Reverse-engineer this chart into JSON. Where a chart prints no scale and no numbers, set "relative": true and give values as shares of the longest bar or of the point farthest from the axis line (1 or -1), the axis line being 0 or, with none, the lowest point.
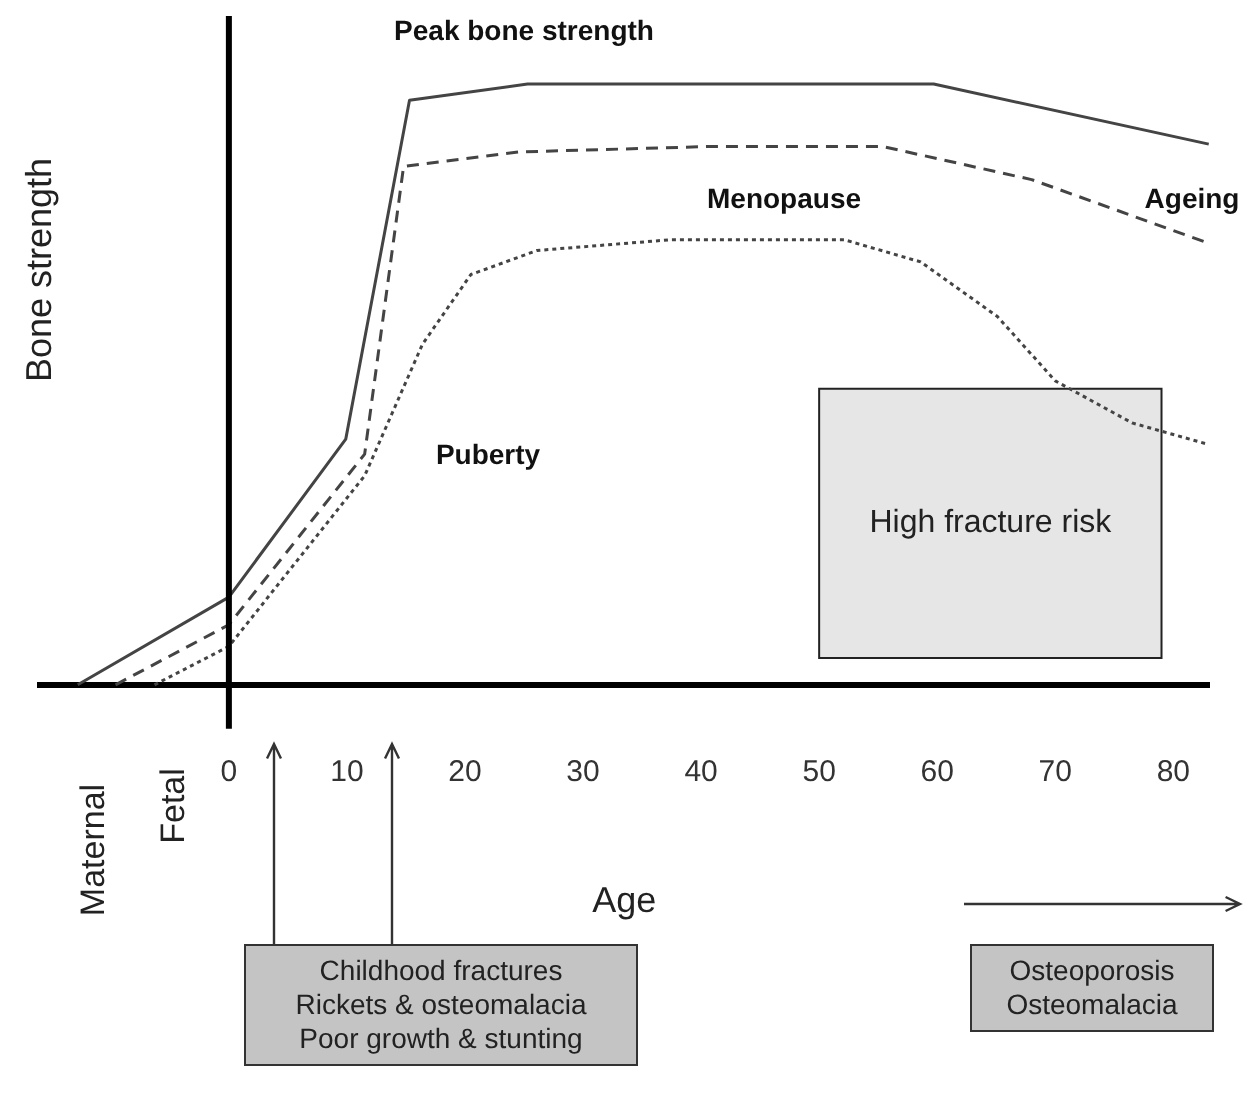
{
  "chart_data": {
    "type": "line",
    "relative": true,
    "xlabel": "Age",
    "ylabel": "Bone strength",
    "xlim": [
      -16,
      83
    ],
    "xticks": [
      0,
      10,
      20,
      30,
      40,
      50,
      60,
      70,
      80
    ],
    "grid": false,
    "legend": false,
    "marker": "none",
    "series": [
      {
        "color": "#444444",
        "line_style": "solid",
        "x": [
          -12.8,
          0,
          9.9,
          15.3,
          25.3,
          59.7,
          83
        ],
        "values": [
          0,
          0.146,
          0.409,
          0.973,
          1,
          1,
          0.9
        ]
      },
      {
        "color": "#444444",
        "line_style": "dashed",
        "x": [
          -9.6,
          0,
          11.5,
          14.8,
          24.5,
          40.6,
          55.4,
          68,
          83
        ],
        "values": [
          0,
          0.1,
          0.384,
          0.863,
          0.887,
          0.896,
          0.896,
          0.841,
          0.735
        ]
      },
      {
        "color": "#444444",
        "line_style": "dotted",
        "x": [
          -6.3,
          0,
          11.5,
          16.4,
          20.5,
          26.1,
          37.5,
          52.1,
          58.6,
          65.1,
          70,
          76.5,
          83
        ],
        "values": [
          0,
          0.064,
          0.348,
          0.567,
          0.683,
          0.723,
          0.741,
          0.741,
          0.704,
          0.613,
          0.506,
          0.436,
          0.4
        ]
      }
    ],
    "ref_lines": [
      {
        "axis": "x",
        "value": 0,
        "color": "#000000"
      }
    ],
    "bands": [
      {
        "axis": "x",
        "from": 50,
        "to": 79,
        "label": "High fracture risk",
        "color": "#e6e6e6"
      }
    ],
    "annotations": [
      "Peak bone strength",
      "Menopause",
      "Ageing",
      "Puberty",
      "Maternal",
      "Fetal",
      "Childhood fractures\nRickets & osteomalacia\nPoor growth & stunting",
      "Osteoporosis\nOsteomalacia"
    ]
  }
}
